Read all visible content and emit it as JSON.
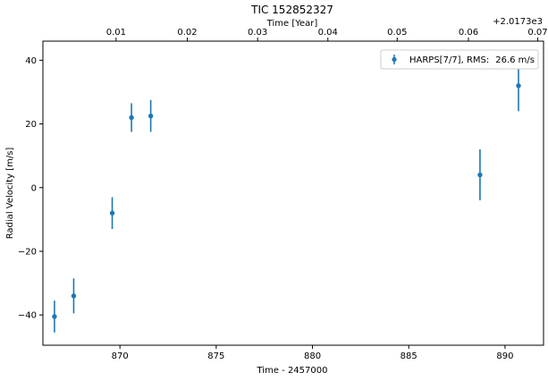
{
  "chart_data": {
    "type": "scatter",
    "title": "TIC 152852327",
    "xlabel": "Time - 2457000",
    "ylabel": "Radial Velocity [m/s]",
    "top_xlabel": "Time [Year]",
    "top_offset": "+2.0173e3",
    "xlim": [
      866.0,
      892.0
    ],
    "ylim": [
      -49.5,
      46.0
    ],
    "x_ticks": [
      870,
      875,
      880,
      885,
      890
    ],
    "y_ticks": [
      -40,
      -20,
      0,
      20,
      40
    ],
    "top_ticks": [
      "0.01",
      "0.02",
      "0.03",
      "0.04",
      "0.05",
      "0.06",
      "0.07"
    ],
    "top_tick_x": [
      869.8,
      873.5,
      877.15,
      880.8,
      884.4,
      888.1,
      891.7
    ],
    "legend": {
      "placement": "top-right",
      "label": "HARPS[7/7], RMS:",
      "rms": "26.6 m/s"
    },
    "series": [
      {
        "name": "HARPS[7/7]",
        "color": "#1f77b4",
        "x": [
          866.6,
          867.6,
          869.6,
          870.6,
          871.6,
          888.7,
          890.7
        ],
        "y": [
          -40.5,
          -34.0,
          -8.0,
          22.0,
          22.5,
          4.0,
          32.0
        ],
        "yerr": [
          5.0,
          5.5,
          5.0,
          4.5,
          5.0,
          8.0,
          8.0
        ]
      }
    ],
    "grid": false
  }
}
